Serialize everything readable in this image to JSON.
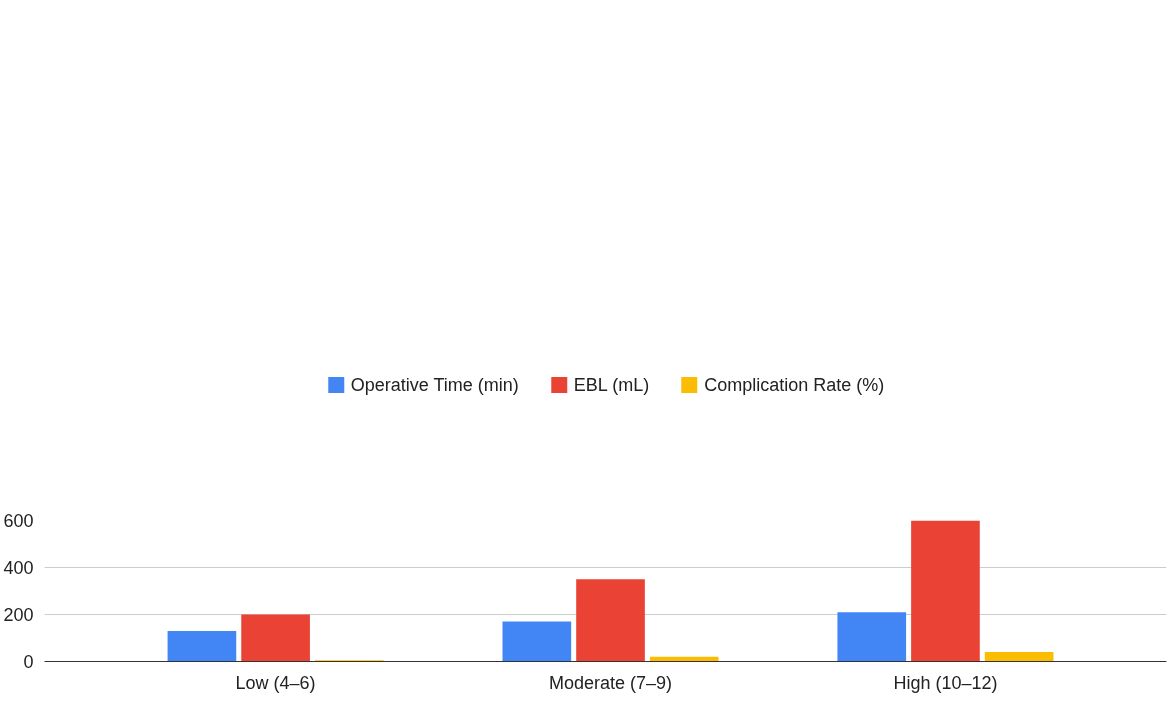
{
  "chart_data": {
    "type": "bar",
    "categories": [
      "Low (4–6)",
      "Moderate (7–9)",
      "High (10–12)"
    ],
    "series": [
      {
        "name": "Operative Time (min)",
        "color": "#4285f4",
        "values": [
          130,
          170,
          210
        ]
      },
      {
        "name": "EBL (mL)",
        "color": "#ea4335",
        "values": [
          200,
          350,
          600
        ]
      },
      {
        "name": "Complication Rate (%)",
        "color": "#fbbc04",
        "values": [
          5,
          20,
          40
        ]
      }
    ],
    "ylim": [
      0,
      600
    ],
    "yticks": [
      0,
      200,
      400,
      600
    ],
    "grid": "y",
    "legend": "top"
  }
}
